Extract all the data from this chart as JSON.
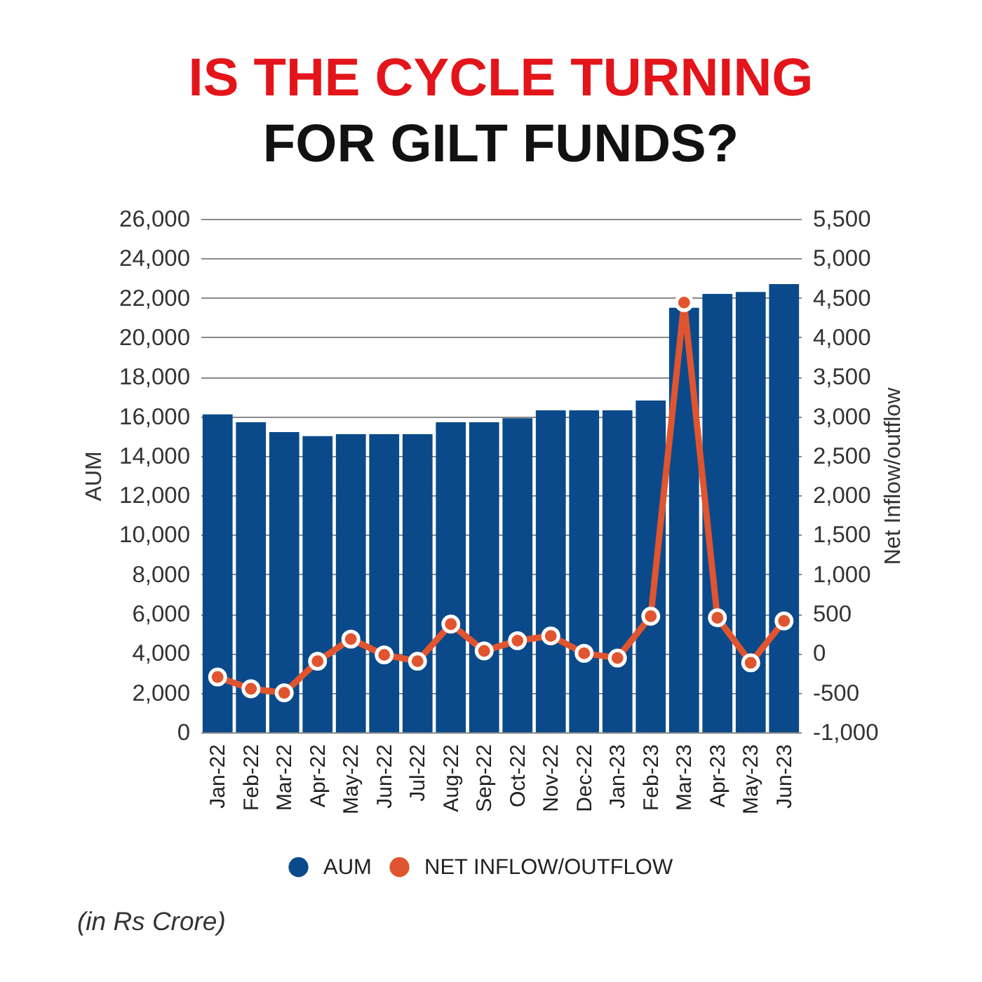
{
  "chart_data": {
    "type": "bar",
    "title": "IS THE CYCLE TURNING",
    "subtitle": "FOR GILT FUNDS?",
    "ylabel": "AUM",
    "y2label": "Net Inflow/outflow",
    "categories": [
      "Jan-22",
      "Feb-22",
      "Mar-22",
      "Apr-22",
      "May-22",
      "Jun-22",
      "Jul-22",
      "Aug-22",
      "Sep-22",
      "Oct-22",
      "Nov-22",
      "Dec-22",
      "Jan-23",
      "Feb-23",
      "Mar-23",
      "Apr-23",
      "May-23",
      "Jun-23"
    ],
    "series": [
      {
        "name": "AUM",
        "type": "bar",
        "color": "#0b4a8a",
        "values": [
          16100,
          15700,
          15200,
          15000,
          15100,
          15100,
          15100,
          15700,
          15700,
          15900,
          16300,
          16300,
          16300,
          16800,
          21500,
          22200,
          22300,
          22700
        ]
      },
      {
        "name": "NET INFLOW/OUTFLOW",
        "type": "line",
        "axis": "y2",
        "color": "#e0552f",
        "values": [
          -300,
          -450,
          -500,
          -100,
          180,
          -20,
          -100,
          370,
          30,
          160,
          220,
          0,
          -60,
          470,
          4440,
          450,
          -120,
          410
        ]
      }
    ],
    "ylim": [
      0,
      26000
    ],
    "yticks": [
      0,
      {
        "value": 2000,
        "label": "2,000"
      },
      {
        "value": 4000,
        "label": "4,000"
      },
      {
        "value": 6000,
        "label": "6,000"
      },
      {
        "value": 8000,
        "label": "8,000"
      },
      {
        "value": 10000,
        "label": "10,000"
      },
      {
        "value": 12000,
        "label": "12,000"
      },
      {
        "value": 14000,
        "label": "14,000"
      },
      {
        "value": 16000,
        "label": "16,000"
      },
      {
        "value": 18000,
        "label": "18,000"
      },
      {
        "value": 20000,
        "label": "20,000"
      },
      {
        "value": 22000,
        "label": "22,000"
      },
      {
        "value": 24000,
        "label": "24,000"
      },
      {
        "value": 26000,
        "label": "26,000"
      }
    ],
    "y2lim": [
      -1000,
      5500
    ],
    "y2ticks": [
      {
        "value": -1000,
        "label": "-1,000"
      },
      -500,
      0,
      500,
      {
        "value": 1000,
        "label": "1,000"
      },
      {
        "value": 1500,
        "label": "1,500"
      },
      {
        "value": 2000,
        "label": "2,000"
      },
      {
        "value": 2500,
        "label": "2,500"
      },
      {
        "value": 3000,
        "label": "3,000"
      },
      {
        "value": 3500,
        "label": "3,500"
      },
      {
        "value": 4000,
        "label": "4,000"
      },
      {
        "value": 4500,
        "label": "4,500"
      },
      {
        "value": 5000,
        "label": "5,000"
      },
      {
        "value": 5500,
        "label": "5,500"
      }
    ],
    "grid": "y",
    "legend": "bottom",
    "marker": "circle",
    "line_style": "solid",
    "annotations": [
      "(in Rs Crore)"
    ]
  }
}
